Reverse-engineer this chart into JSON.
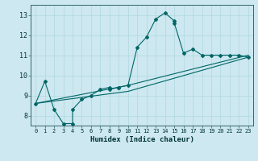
{
  "xlabel": "Humidex (Indice chaleur)",
  "bg_color": "#cde8f0",
  "line_color": "#006666",
  "xlim": [
    -0.5,
    23.5
  ],
  "ylim": [
    7.5,
    13.5
  ],
  "xticks": [
    0,
    1,
    2,
    3,
    4,
    5,
    6,
    7,
    8,
    9,
    10,
    11,
    12,
    13,
    14,
    15,
    16,
    17,
    18,
    19,
    20,
    21,
    22,
    23
  ],
  "yticks": [
    8,
    9,
    10,
    11,
    12,
    13
  ],
  "series": [
    [
      0,
      8.6
    ],
    [
      1,
      9.7
    ],
    [
      2,
      8.3
    ],
    [
      3,
      7.6
    ],
    [
      4,
      7.6
    ],
    [
      4,
      8.3
    ],
    [
      5,
      8.8
    ],
    [
      6,
      9.0
    ],
    [
      7,
      9.3
    ],
    [
      8,
      9.4
    ],
    [
      8,
      9.3
    ],
    [
      9,
      9.4
    ],
    [
      9,
      9.4
    ],
    [
      10,
      9.5
    ],
    [
      11,
      11.4
    ],
    [
      12,
      11.9
    ],
    [
      13,
      12.8
    ],
    [
      14,
      13.1
    ],
    [
      15,
      12.7
    ],
    [
      15,
      12.6
    ],
    [
      16,
      11.1
    ],
    [
      17,
      11.3
    ],
    [
      18,
      11.0
    ],
    [
      19,
      11.0
    ],
    [
      20,
      11.0
    ],
    [
      21,
      11.0
    ],
    [
      22,
      11.0
    ],
    [
      23,
      10.9
    ]
  ],
  "series2": [
    [
      0,
      8.6
    ],
    [
      10,
      9.5
    ],
    [
      23,
      11.0
    ]
  ],
  "series3": [
    [
      0,
      8.6
    ],
    [
      10,
      9.2
    ],
    [
      23,
      10.9
    ]
  ]
}
